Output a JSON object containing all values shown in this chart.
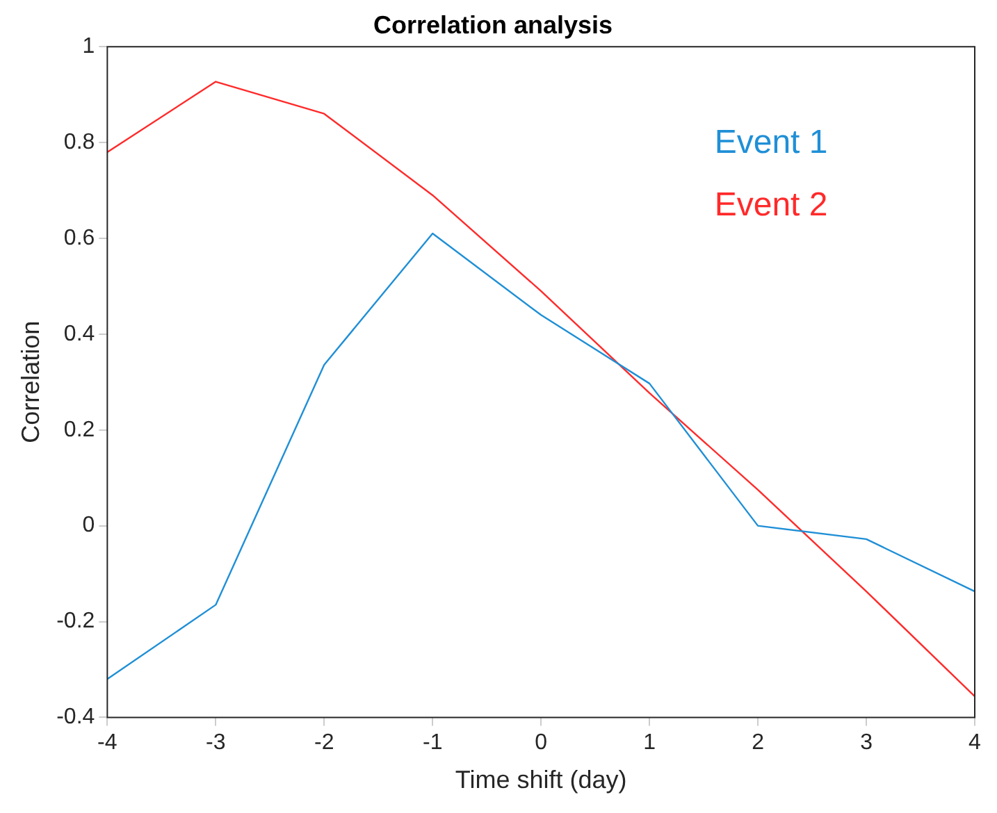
{
  "chart_data": {
    "type": "line",
    "title": "Correlation analysis",
    "xlabel": "Time shift (day)",
    "ylabel": "Correlation",
    "x": [
      -4,
      -3,
      -2,
      -1,
      0,
      1,
      2,
      3,
      4
    ],
    "series": [
      {
        "name": "Event 1",
        "color": "#1f8fd6",
        "values": [
          -0.32,
          -0.165,
          0.336,
          0.61,
          0.44,
          0.297,
          0.0,
          -0.028,
          -0.137
        ]
      },
      {
        "name": "Event 2",
        "color": "#ff2a2a",
        "values": [
          0.78,
          0.927,
          0.86,
          0.69,
          0.49,
          0.277,
          0.075,
          -0.137,
          -0.356
        ]
      }
    ],
    "xlim": [
      -4,
      4
    ],
    "xticks": [
      -4,
      -3,
      -2,
      -1,
      0,
      1,
      2,
      3,
      4
    ],
    "ylim": [
      -0.4,
      1
    ],
    "yticks": [
      -0.4,
      -0.2,
      0,
      0.2,
      0.4,
      0.6,
      0.8,
      1
    ],
    "grid": false,
    "legend": "top right",
    "marker": "none",
    "line_style": "solid"
  }
}
